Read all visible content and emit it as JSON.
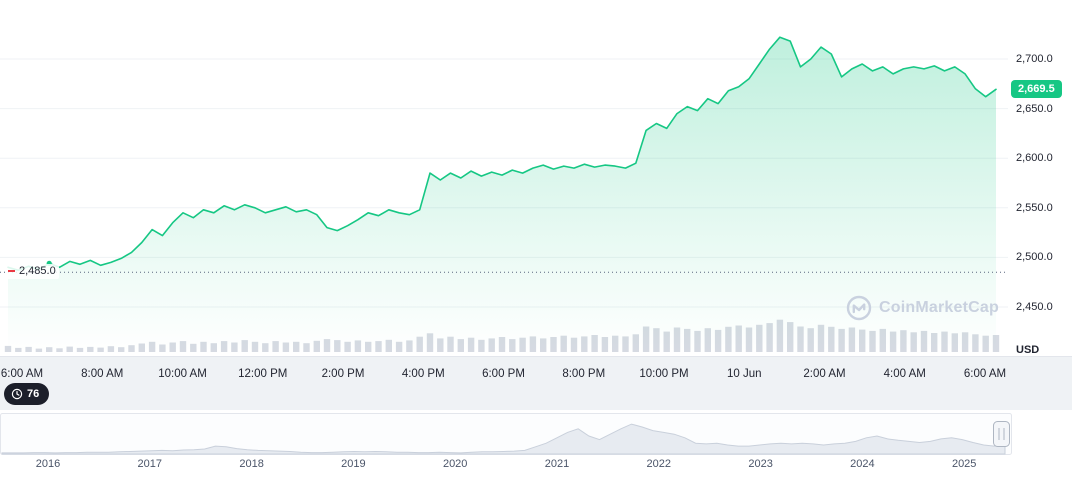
{
  "app": {
    "watermark": "CoinMarketCap"
  },
  "icons": {
    "history_badge": "clock-icon",
    "watermark_logo": "coinmarketcap-logo-icon",
    "navigator_handle": "drag-handle-icon"
  },
  "colors": {
    "accent_green": "#16c784",
    "badge_bg": "#16c784",
    "open_marker_red": "#ea3943",
    "volume_bar": "#d6dae2",
    "navigator_fill": "#e7ebf1",
    "navigator_stroke": "#c9d0db",
    "grid": "#eff2f5",
    "axis_text": "#222531",
    "muted_text": "#58667e",
    "watermark_text": "#c9d1df",
    "strip_bg": "#eff2f5",
    "dark_badge_bg": "#1c1f2a",
    "open_line": "#58667e"
  },
  "price_axis": {
    "current_price_label": "2,669.5",
    "open_price_label": "2,485.0",
    "unit": "USD",
    "ticks": [
      {
        "label": "2,700.0",
        "value": 2700
      },
      {
        "label": "2,650.0",
        "value": 2650
      },
      {
        "label": "2,600.0",
        "value": 2600
      },
      {
        "label": "2,550.0",
        "value": 2550
      },
      {
        "label": "2,500.0",
        "value": 2500
      },
      {
        "label": "2,450.0",
        "value": 2450
      }
    ]
  },
  "history_badge": {
    "label": "76"
  },
  "chart_data": {
    "type": "area",
    "title": "",
    "xlabel": "",
    "ylabel": "USD",
    "ylim": [
      2450,
      2700
    ],
    "grid": "horizontal",
    "legend": "none",
    "open_value": 2485,
    "last_value": 2669.5,
    "x_labels": [
      "6:00 AM",
      "8:00 AM",
      "10:00 AM",
      "12:00 PM",
      "2:00 PM",
      "4:00 PM",
      "6:00 PM",
      "8:00 PM",
      "10:00 PM",
      "10 Jun",
      "2:00 AM",
      "4:00 AM",
      "6:00 AM"
    ],
    "series": [
      {
        "name": "Price (USD)",
        "values": [
          2490,
          2487,
          2491,
          2488,
          2494,
          2490,
          2496,
          2493,
          2497,
          2492,
          2495,
          2499,
          2505,
          2515,
          2528,
          2522,
          2535,
          2545,
          2540,
          2548,
          2545,
          2552,
          2548,
          2553,
          2550,
          2545,
          2548,
          2551,
          2546,
          2548,
          2543,
          2530,
          2527,
          2532,
          2538,
          2545,
          2542,
          2548,
          2545,
          2543,
          2548,
          2585,
          2578,
          2585,
          2580,
          2587,
          2582,
          2586,
          2583,
          2588,
          2585,
          2590,
          2593,
          2589,
          2592,
          2590,
          2594,
          2591,
          2593,
          2592,
          2590,
          2595,
          2628,
          2635,
          2630,
          2645,
          2652,
          2648,
          2660,
          2655,
          2668,
          2672,
          2680,
          2695,
          2710,
          2722,
          2718,
          2692,
          2700,
          2712,
          2705,
          2682,
          2690,
          2695,
          2688,
          2692,
          2685,
          2690,
          2692,
          2690,
          2693,
          2688,
          2692,
          2685,
          2670,
          2662,
          2669.5
        ]
      }
    ],
    "volume_relative": [
      0.18,
      0.12,
      0.15,
      0.1,
      0.14,
      0.11,
      0.16,
      0.12,
      0.15,
      0.13,
      0.17,
      0.14,
      0.2,
      0.25,
      0.3,
      0.22,
      0.28,
      0.32,
      0.24,
      0.3,
      0.26,
      0.32,
      0.28,
      0.35,
      0.3,
      0.26,
      0.32,
      0.28,
      0.3,
      0.26,
      0.33,
      0.38,
      0.35,
      0.3,
      0.34,
      0.3,
      0.32,
      0.36,
      0.3,
      0.34,
      0.45,
      0.55,
      0.4,
      0.45,
      0.38,
      0.42,
      0.36,
      0.4,
      0.44,
      0.38,
      0.42,
      0.46,
      0.4,
      0.44,
      0.48,
      0.42,
      0.46,
      0.5,
      0.44,
      0.48,
      0.46,
      0.52,
      0.75,
      0.7,
      0.6,
      0.72,
      0.68,
      0.62,
      0.7,
      0.65,
      0.74,
      0.78,
      0.72,
      0.8,
      0.85,
      0.95,
      0.88,
      0.75,
      0.7,
      0.8,
      0.74,
      0.68,
      0.72,
      0.66,
      0.62,
      0.68,
      0.6,
      0.64,
      0.58,
      0.62,
      0.56,
      0.6,
      0.55,
      0.58,
      0.52,
      0.48,
      0.5
    ],
    "navigator": {
      "type": "area",
      "years": [
        "2016",
        "2017",
        "2018",
        "2019",
        "2020",
        "2021",
        "2022",
        "2023",
        "2024",
        "2025"
      ],
      "values": [
        0.03,
        0.03,
        0.03,
        0.04,
        0.04,
        0.03,
        0.04,
        0.04,
        0.05,
        0.05,
        0.05,
        0.06,
        0.07,
        0.08,
        0.09,
        0.1,
        0.09,
        0.11,
        0.12,
        0.14,
        0.22,
        0.2,
        0.15,
        0.12,
        0.1,
        0.09,
        0.08,
        0.07,
        0.05,
        0.04,
        0.04,
        0.05,
        0.06,
        0.07,
        0.06,
        0.07,
        0.06,
        0.05,
        0.05,
        0.04,
        0.04,
        0.05,
        0.04,
        0.03,
        0.05,
        0.06,
        0.06,
        0.07,
        0.08,
        0.1,
        0.2,
        0.3,
        0.45,
        0.6,
        0.7,
        0.5,
        0.4,
        0.55,
        0.7,
        0.83,
        0.75,
        0.65,
        0.6,
        0.55,
        0.45,
        0.3,
        0.28,
        0.3,
        0.25,
        0.22,
        0.22,
        0.25,
        0.28,
        0.3,
        0.28,
        0.3,
        0.28,
        0.25,
        0.28,
        0.3,
        0.35,
        0.45,
        0.5,
        0.42,
        0.38,
        0.35,
        0.32,
        0.35,
        0.42,
        0.45,
        0.4,
        0.32,
        0.25,
        0.22,
        0.28
      ]
    }
  }
}
